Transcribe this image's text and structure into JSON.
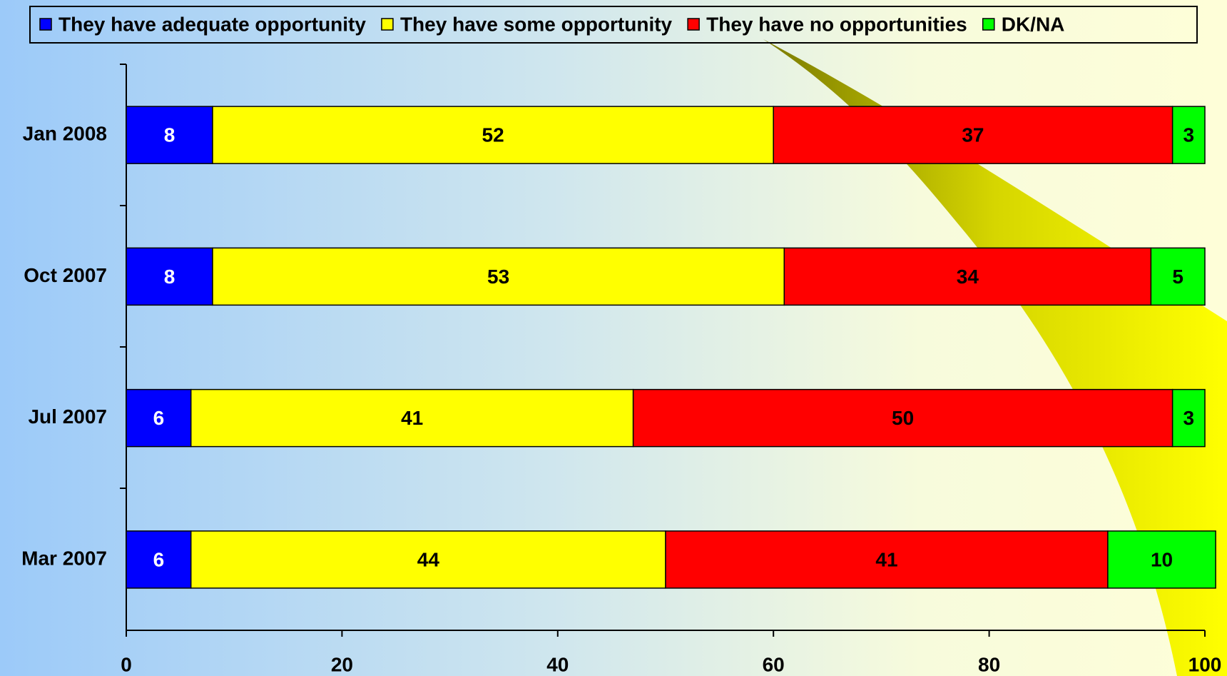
{
  "chart_data": {
    "type": "stacked-bar-horizontal",
    "categories": [
      "Jan 2008",
      "Oct 2007",
      "Jul 2007",
      "Mar 2007"
    ],
    "series": [
      {
        "name": "They have adequate opportunity",
        "color": "#0000ff",
        "label_color": "#ffffff",
        "values": [
          8,
          8,
          6,
          6
        ]
      },
      {
        "name": "They have some opportunity",
        "color": "#ffff00",
        "label_color": "#000000",
        "values": [
          52,
          53,
          41,
          44
        ]
      },
      {
        "name": "They have no opportunities",
        "color": "#ff0000",
        "label_color": "#000000",
        "values": [
          37,
          34,
          50,
          41
        ]
      },
      {
        "name": "DK/NA",
        "color": "#00ff00",
        "label_color": "#000000",
        "values": [
          3,
          5,
          3,
          10
        ]
      }
    ],
    "xlim": [
      0,
      100
    ],
    "xticks": [
      0,
      20,
      40,
      60,
      80,
      100
    ],
    "legend": "top"
  }
}
